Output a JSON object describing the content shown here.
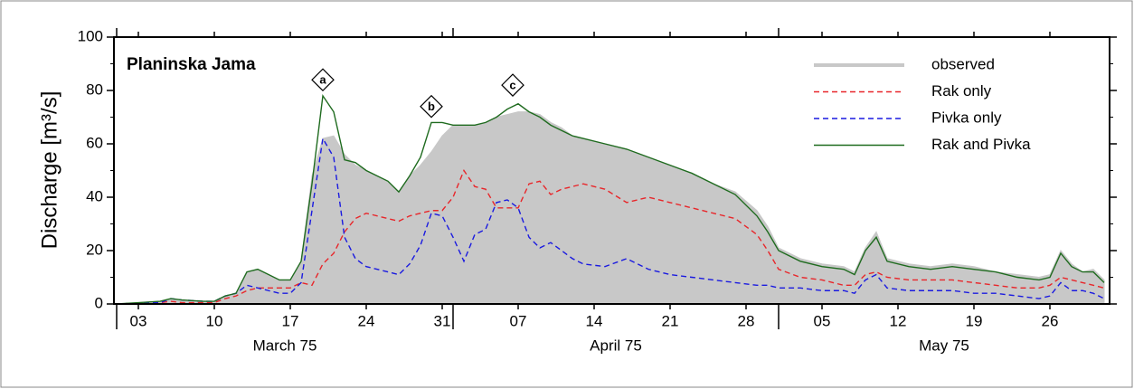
{
  "chart_data": {
    "type": "line",
    "title": "Planinska Jama",
    "y_label": "Discharge [m³/s]",
    "xlim": [
      0.75,
      92.5
    ],
    "ylim": [
      0,
      100
    ],
    "yticks": [
      0,
      20,
      40,
      60,
      80,
      100
    ],
    "yminor": [
      10,
      30,
      50,
      70,
      90
    ],
    "xticks": [
      {
        "value": 3,
        "label": "03"
      },
      {
        "value": 10,
        "label": "10"
      },
      {
        "value": 17,
        "label": "17"
      },
      {
        "value": 24,
        "label": "24"
      },
      {
        "value": 31,
        "label": "31"
      },
      {
        "value": 38,
        "label": "07"
      },
      {
        "value": 45,
        "label": "14"
      },
      {
        "value": 52,
        "label": "21"
      },
      {
        "value": 59,
        "label": "28"
      },
      {
        "value": 66,
        "label": "05"
      },
      {
        "value": 73,
        "label": "12"
      },
      {
        "value": 80,
        "label": "19"
      },
      {
        "value": 87,
        "label": "26"
      }
    ],
    "month_bounds": [
      1,
      32,
      62,
      93
    ],
    "months": [
      "March 75",
      "April 75",
      "May 75"
    ],
    "legend": "upper right",
    "x": [
      1,
      3,
      5,
      6,
      7,
      9,
      10,
      11,
      12,
      13,
      14,
      15,
      16,
      17,
      18,
      19,
      20,
      21,
      22,
      23,
      24,
      26,
      27,
      28,
      29,
      30,
      31,
      32,
      33,
      34,
      35,
      36,
      37,
      38,
      39,
      40,
      41,
      42,
      43,
      44,
      46,
      48,
      50,
      52,
      54,
      56,
      58,
      60,
      61,
      62,
      64,
      66,
      68,
      69,
      70,
      71,
      72,
      74,
      76,
      78,
      80,
      82,
      84,
      86,
      87,
      88,
      89,
      90,
      91,
      92
    ],
    "series": [
      {
        "name": "observed",
        "color": "#c8c8c8",
        "style": "area",
        "values": [
          0,
          0.5,
          1,
          2,
          1.5,
          1,
          1,
          3,
          4,
          12,
          13,
          11,
          9,
          9,
          16,
          48,
          62,
          63,
          56,
          52,
          50,
          46,
          42,
          48,
          52,
          57,
          63,
          67,
          67,
          67,
          68,
          70,
          71,
          72,
          72,
          71,
          68,
          66,
          63,
          62,
          60,
          58,
          55,
          52,
          49,
          45,
          42,
          35,
          29,
          21,
          17,
          15,
          14,
          12,
          21,
          27,
          17,
          15,
          14,
          15,
          14,
          12,
          11,
          10,
          11,
          20,
          15,
          12,
          13,
          9
        ]
      },
      {
        "name": "Rak only",
        "color": "#e8262a",
        "style": "dashed",
        "values": [
          0,
          0.3,
          0.5,
          1,
          0.5,
          0.5,
          0.5,
          2,
          3,
          5,
          6,
          6,
          6,
          6,
          8,
          7,
          15,
          19,
          27,
          32,
          34,
          32,
          31,
          33,
          34,
          35,
          35,
          40,
          50,
          44,
          43,
          36,
          36,
          36,
          45,
          46,
          41,
          43,
          44,
          45,
          43,
          38,
          40,
          38,
          36,
          34,
          32,
          26,
          20,
          13,
          10,
          9,
          7,
          7,
          11,
          12,
          10,
          9,
          9,
          9,
          8,
          7,
          6,
          6,
          7,
          10,
          9,
          8,
          7,
          6
        ]
      },
      {
        "name": "Pivka only",
        "color": "#1a1ae0",
        "style": "dashed",
        "values": [
          0,
          0.3,
          0.5,
          2,
          1.5,
          1,
          1,
          3,
          4,
          7,
          6,
          5,
          4,
          4,
          8,
          35,
          62,
          55,
          25,
          17,
          14,
          12,
          11,
          15,
          22,
          34,
          33,
          25,
          16,
          26,
          28,
          38,
          39,
          36,
          25,
          21,
          23,
          20,
          17,
          15,
          14,
          17,
          13,
          11,
          10,
          9,
          8,
          7,
          7,
          6,
          6,
          5,
          5,
          4,
          9,
          11,
          6,
          5,
          5,
          5,
          4,
          4,
          3,
          2,
          3,
          8,
          5,
          5,
          4,
          2
        ]
      },
      {
        "name": "Rak and Pivka",
        "color": "#1f6b1f",
        "style": "solid",
        "values": [
          0,
          0.5,
          1,
          2,
          1.5,
          1,
          1,
          3,
          4,
          12,
          13,
          11,
          9,
          9,
          16,
          45,
          78,
          72,
          54,
          53,
          50,
          46,
          42,
          48,
          55,
          68,
          68,
          67,
          67,
          67,
          68,
          70,
          73,
          75,
          72,
          70,
          67,
          65,
          63,
          62,
          60,
          58,
          55,
          52,
          49,
          45,
          41,
          33,
          27,
          20,
          16,
          14,
          13,
          11,
          20,
          25,
          16,
          14,
          13,
          14,
          13,
          12,
          10,
          9,
          10,
          19,
          14,
          12,
          12,
          8
        ]
      }
    ],
    "annotations": [
      {
        "text": "a",
        "x": 20,
        "y": 84
      },
      {
        "text": "b",
        "x": 30,
        "y": 74
      },
      {
        "text": "c",
        "x": 37.5,
        "y": 82
      }
    ]
  }
}
